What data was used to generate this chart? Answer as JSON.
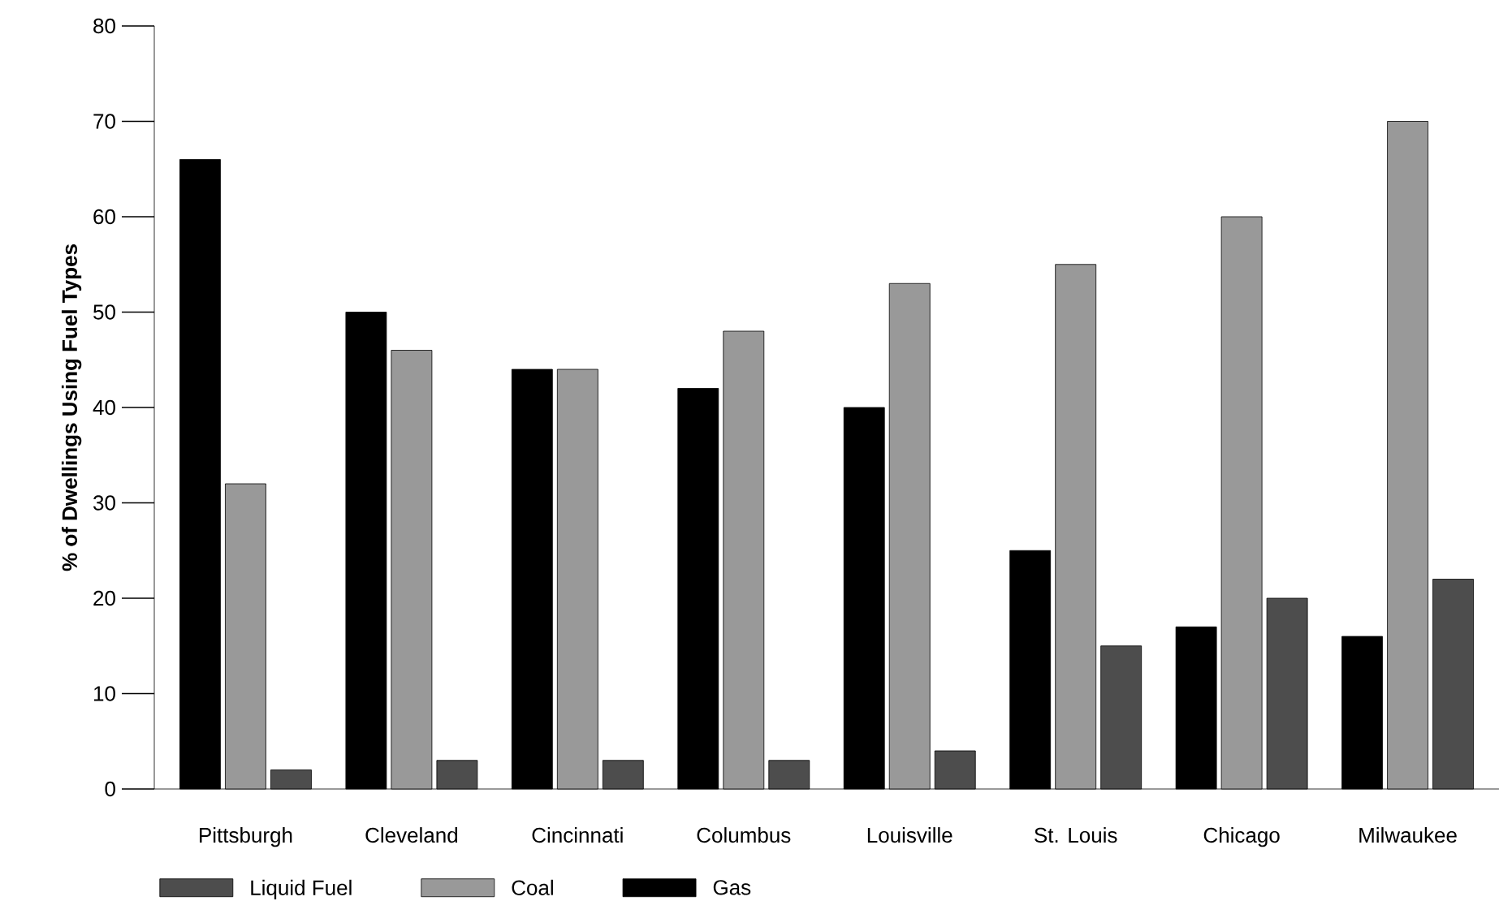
{
  "chart_data": {
    "type": "bar",
    "ylabel": "% of Dwellings Using Fuel Types",
    "categories": [
      "Pittsburgh",
      "Cleveland",
      "Cincinnati",
      "Columbus",
      "Louisville",
      "St. Louis",
      "Chicago",
      "Milwaukee"
    ],
    "series": [
      {
        "name": "Liquid Fuel",
        "color": "#4d4d4d",
        "values": [
          2,
          3,
          3,
          3,
          4,
          15,
          20,
          22
        ]
      },
      {
        "name": "Coal",
        "color": "#999999",
        "values": [
          32,
          46,
          44,
          48,
          53,
          55,
          60,
          70
        ]
      },
      {
        "name": "Gas",
        "color": "#000000",
        "values": [
          66,
          50,
          44,
          42,
          40,
          25,
          17,
          16
        ]
      }
    ],
    "ylim": [
      0,
      80
    ],
    "yticks": [
      0,
      10,
      20,
      30,
      40,
      50,
      60,
      70,
      80
    ],
    "grid": false,
    "legend": "bottom"
  }
}
